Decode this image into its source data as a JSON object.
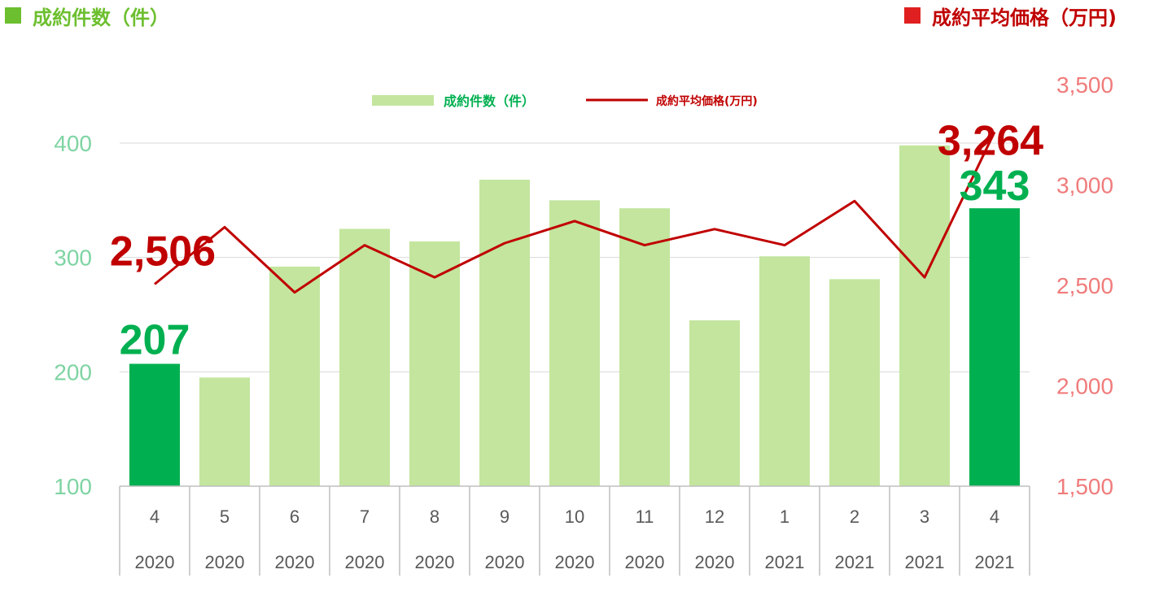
{
  "header": {
    "left_title": "成約件数（件）",
    "right_title": "成約平均価格（万円)",
    "left_marker_color": "#6cbf2e",
    "right_marker_color": "#e02020"
  },
  "chart_data": {
    "type": "bar",
    "categories": [
      {
        "month": "4",
        "year": "2020"
      },
      {
        "month": "5",
        "year": "2020"
      },
      {
        "month": "6",
        "year": "2020"
      },
      {
        "month": "7",
        "year": "2020"
      },
      {
        "month": "8",
        "year": "2020"
      },
      {
        "month": "9",
        "year": "2020"
      },
      {
        "month": "10",
        "year": "2020"
      },
      {
        "month": "11",
        "year": "2020"
      },
      {
        "month": "12",
        "year": "2020"
      },
      {
        "month": "1",
        "year": "2021"
      },
      {
        "month": "2",
        "year": "2021"
      },
      {
        "month": "3",
        "year": "2021"
      },
      {
        "month": "4",
        "year": "2021"
      }
    ],
    "series": [
      {
        "name": "成約件数（件）",
        "type": "bar",
        "axis": "left",
        "values": [
          207,
          195,
          292,
          325,
          314,
          368,
          350,
          343,
          245,
          301,
          281,
          398,
          343
        ],
        "color": "#c3e59e",
        "highlight_color": "#00b050",
        "highlight_indices": [
          0,
          12
        ]
      },
      {
        "name": "成約平均価格(万円)",
        "type": "line",
        "axis": "right",
        "values": [
          2506,
          2790,
          2465,
          2700,
          2540,
          2710,
          2820,
          2700,
          2780,
          2700,
          2920,
          2540,
          3264
        ],
        "color": "#c00000"
      }
    ],
    "left_axis": {
      "ylim": [
        100,
        400
      ],
      "ticks": [
        100,
        200,
        300,
        400
      ],
      "color": "#7fd4a3"
    },
    "right_axis": {
      "ylim": [
        1500,
        3500
      ],
      "ticks": [
        "1,500",
        "2,000",
        "2,500",
        "3,000",
        "3,500"
      ],
      "tick_values": [
        1500,
        2000,
        2500,
        3000,
        3500
      ],
      "color": "#f07b7b"
    },
    "grid": true,
    "legend_position": "top-center",
    "annotations": [
      {
        "text": "207",
        "series": 0,
        "index": 0,
        "color": "#00b050"
      },
      {
        "text": "343",
        "series": 0,
        "index": 12,
        "color": "#00b050"
      },
      {
        "text": "2,506",
        "series": 1,
        "index": 0,
        "color": "#c00000"
      },
      {
        "text": "3,264",
        "series": 1,
        "index": 12,
        "color": "#c00000"
      }
    ]
  }
}
